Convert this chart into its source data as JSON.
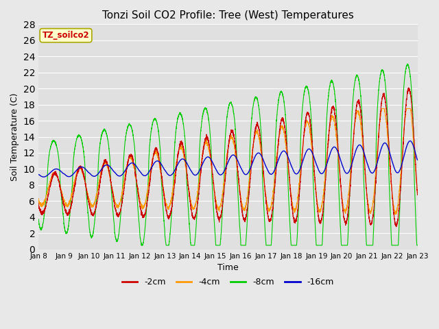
{
  "title": "Tonzi Soil CO2 Profile: Tree (West) Temperatures",
  "xlabel": "Time",
  "ylabel": "Soil Temperature (C)",
  "ylim": [
    0,
    28
  ],
  "yticks": [
    0,
    2,
    4,
    6,
    8,
    10,
    12,
    14,
    16,
    18,
    20,
    22,
    24,
    26,
    28
  ],
  "fig_bg_color": "#e8e8e8",
  "plot_bg_color": "#e0e0e0",
  "grid_color": "#ffffff",
  "colors": {
    "-2cm": "#cc0000",
    "-4cm": "#ff9900",
    "-8cm": "#00cc00",
    "-16cm": "#0000cc"
  },
  "legend_label": "TZ_soilco2",
  "legend_box_facecolor": "#ffffcc",
  "legend_box_edgecolor": "#aaa800",
  "legend_text_color": "#cc0000",
  "x_tick_labels": [
    "Jan 8",
    "Jan 9",
    "Jan 10",
    "Jan 11",
    "Jan 12",
    "Jan 13",
    "Jan 14",
    "Jan 15",
    "Jan 16",
    "Jan 17",
    "Jan 18",
    "Jan 19",
    "Jan 20",
    "Jan 21",
    "Jan 22",
    "Jan 23"
  ],
  "n_days": 15,
  "pts_per_day": 288
}
